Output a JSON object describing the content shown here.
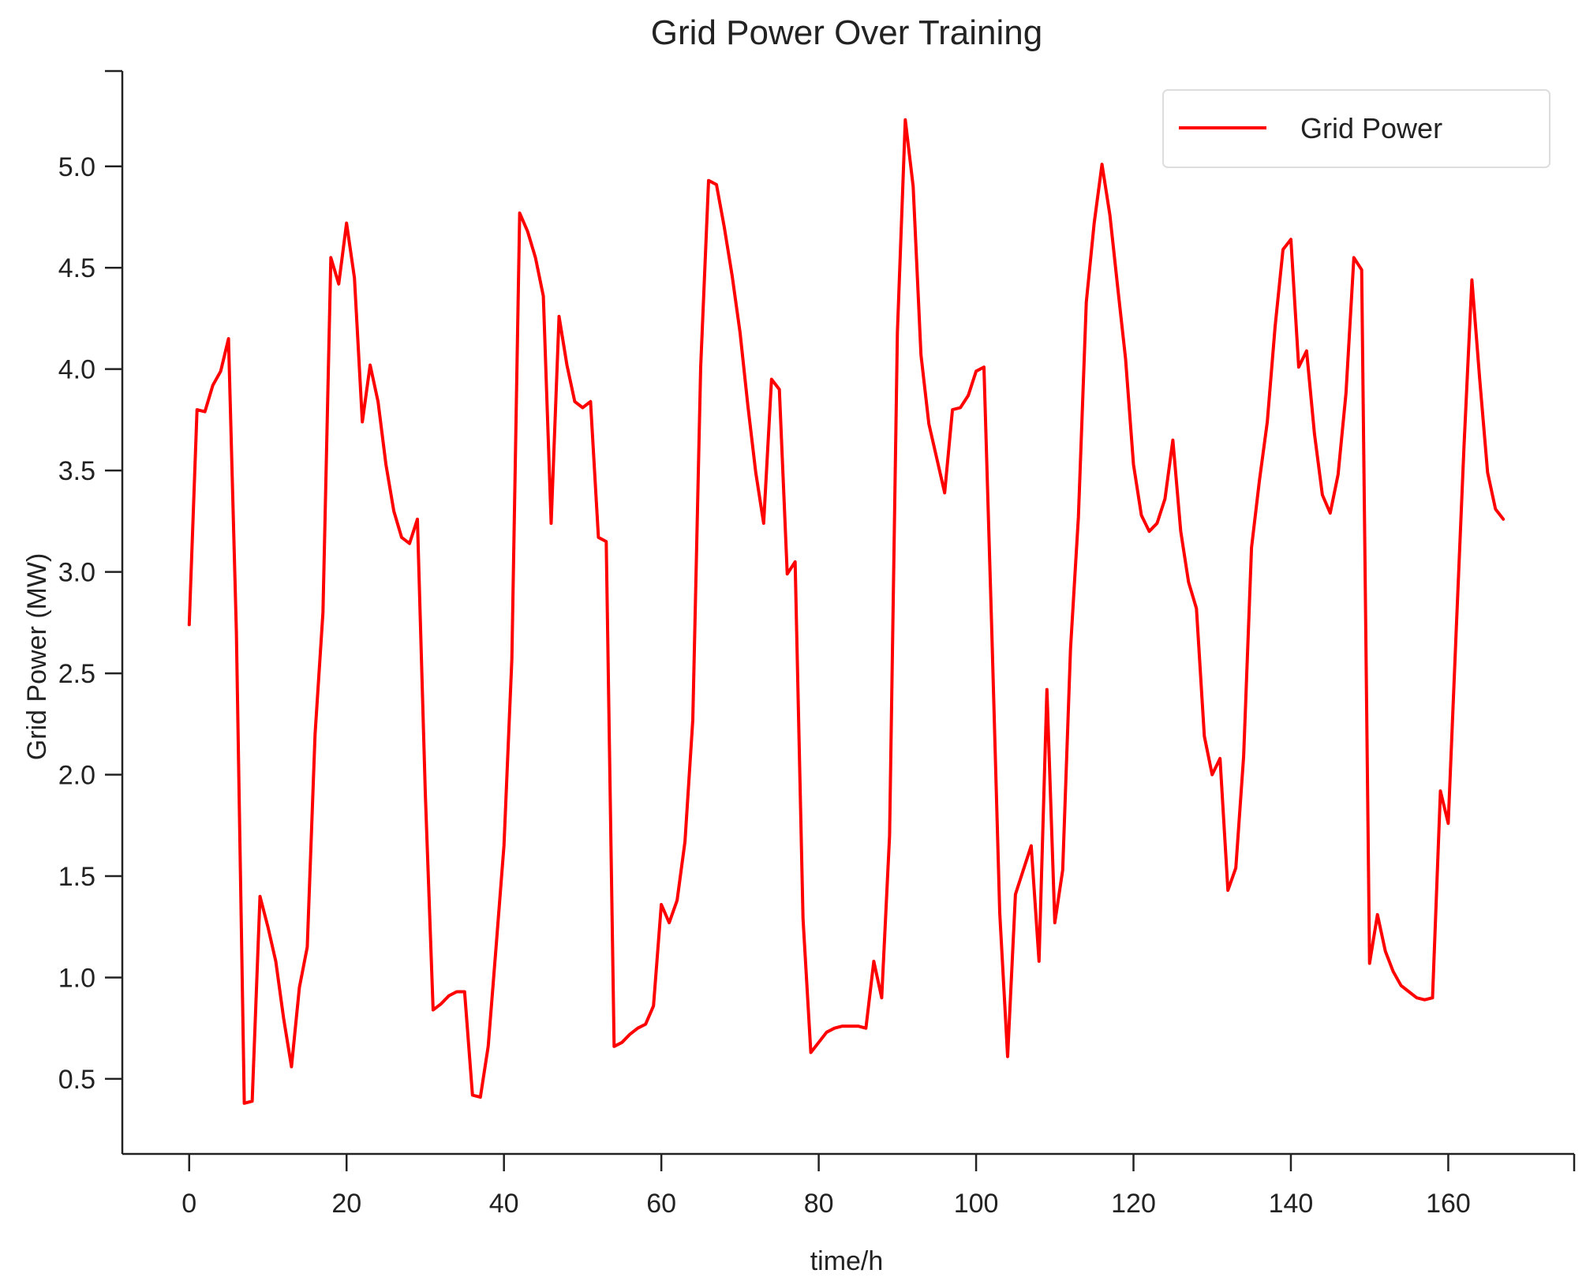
{
  "chart_data": {
    "type": "line",
    "title": "Grid Power Over Training",
    "xlabel": "time/h",
    "ylabel": "Grid Power (MW)",
    "xlim": [
      -8.5,
      176
    ],
    "ylim": [
      0.13,
      5.47
    ],
    "xticks": [
      0,
      20,
      40,
      60,
      80,
      100,
      120,
      140,
      160
    ],
    "xtick_labels": [
      "0",
      "20",
      "40",
      "60",
      "80",
      "100",
      "120",
      "140",
      "160"
    ],
    "yticks": [
      0.5,
      1.0,
      1.5,
      2.0,
      2.5,
      3.0,
      3.5,
      4.0,
      4.5,
      5.0
    ],
    "ytick_labels": [
      "0.5",
      "1.0",
      "1.5",
      "2.0",
      "2.5",
      "3.0",
      "3.5",
      "4.0",
      "4.5",
      "5.0"
    ],
    "grid": false,
    "legend_position": "top-right",
    "series": [
      {
        "name": "Grid Power",
        "color": "#ff0000",
        "x": [
          0,
          1,
          2,
          3,
          4,
          5,
          6,
          7,
          8,
          9,
          10,
          11,
          12,
          13,
          14,
          15,
          16,
          17,
          18,
          19,
          20,
          21,
          22,
          23,
          24,
          25,
          26,
          27,
          28,
          29,
          30,
          31,
          32,
          33,
          34,
          35,
          36,
          37,
          38,
          39,
          40,
          41,
          42,
          43,
          44,
          45,
          46,
          47,
          48,
          49,
          50,
          51,
          52,
          53,
          54,
          55,
          56,
          57,
          58,
          59,
          60,
          61,
          62,
          63,
          64,
          65,
          66,
          67,
          68,
          69,
          70,
          71,
          72,
          73,
          74,
          75,
          76,
          77,
          78,
          79,
          80,
          81,
          82,
          83,
          84,
          85,
          86,
          87,
          88,
          89,
          90,
          91,
          92,
          93,
          94,
          95,
          96,
          97,
          98,
          99,
          100,
          101,
          102,
          103,
          104,
          105,
          106,
          107,
          108,
          109,
          110,
          111,
          112,
          113,
          114,
          115,
          116,
          117,
          118,
          119,
          120,
          121,
          122,
          123,
          124,
          125,
          126,
          127,
          128,
          129,
          130,
          131,
          132,
          133,
          134,
          135,
          136,
          137,
          138,
          139,
          140,
          141,
          142,
          143,
          144,
          145,
          146,
          147,
          148,
          149,
          150,
          151,
          152,
          153,
          154,
          155,
          156,
          157,
          158,
          159,
          160,
          161,
          162,
          163,
          164,
          165,
          166,
          167
        ],
        "y": [
          2.74,
          3.8,
          3.79,
          3.92,
          3.99,
          4.15,
          2.7,
          0.38,
          0.39,
          1.4,
          1.25,
          1.08,
          0.8,
          0.56,
          0.95,
          1.15,
          2.2,
          2.8,
          4.55,
          4.42,
          4.72,
          4.45,
          3.74,
          4.02,
          3.84,
          3.53,
          3.3,
          3.17,
          3.14,
          3.26,
          1.91,
          0.84,
          0.87,
          0.91,
          0.93,
          0.93,
          0.42,
          0.41,
          0.66,
          1.15,
          1.65,
          2.57,
          4.77,
          4.68,
          4.55,
          4.36,
          3.24,
          4.26,
          4.02,
          3.84,
          3.81,
          3.84,
          3.17,
          3.15,
          0.66,
          0.68,
          0.72,
          0.75,
          0.77,
          0.86,
          1.36,
          1.27,
          1.38,
          1.67,
          2.27,
          4.01,
          4.93,
          4.91,
          4.7,
          4.46,
          4.18,
          3.82,
          3.49,
          3.24,
          3.95,
          3.9,
          2.99,
          3.05,
          1.29,
          0.63,
          0.68,
          0.73,
          0.75,
          0.76,
          0.76,
          0.76,
          0.75,
          1.08,
          0.9,
          1.7,
          4.18,
          5.23,
          4.9,
          4.07,
          3.73,
          3.56,
          3.39,
          3.8,
          3.81,
          3.87,
          3.99,
          4.01,
          2.7,
          1.32,
          0.61,
          1.41,
          1.53,
          1.65,
          1.08,
          2.42,
          1.27,
          1.53,
          2.62,
          3.27,
          4.33,
          4.72,
          5.01,
          4.76,
          4.4,
          4.05,
          3.53,
          3.28,
          3.2,
          3.24,
          3.36,
          3.65,
          3.2,
          2.95,
          2.82,
          2.19,
          2.0,
          2.08,
          1.43,
          1.54,
          2.09,
          3.12,
          3.45,
          3.74,
          4.21,
          4.59,
          4.64,
          4.01,
          4.09,
          3.68,
          3.38,
          3.29,
          3.48,
          3.88,
          4.55,
          4.49,
          1.07,
          1.31,
          1.13,
          1.03,
          0.96,
          0.93,
          0.9,
          0.89,
          0.9,
          1.92,
          1.76,
          2.7,
          3.62,
          4.44,
          3.95,
          3.49,
          3.31,
          3.26
        ]
      }
    ]
  }
}
